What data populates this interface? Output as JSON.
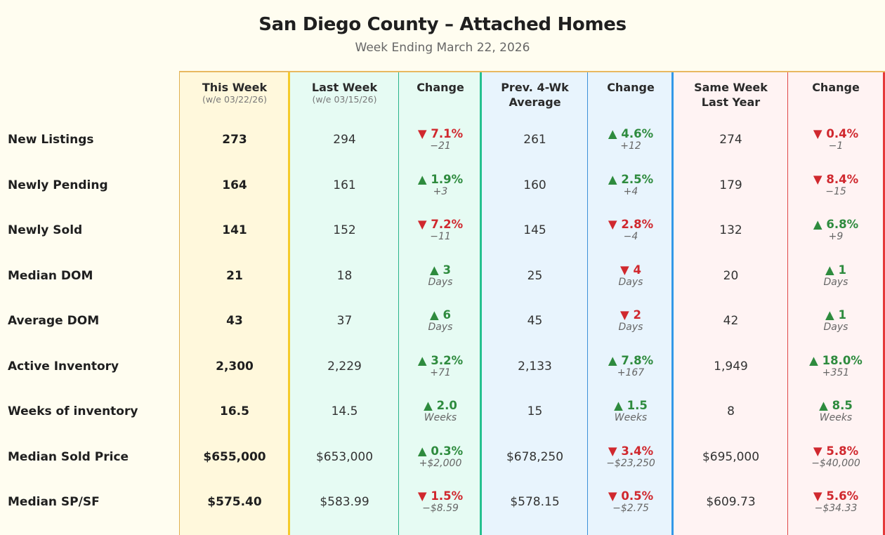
{
  "title": "San Diego County – Attached Homes",
  "subtitle": "Week Ending March 22, 2026",
  "colors": {
    "up": "#2e8b3e",
    "down": "#d0282e",
    "this_week_bg": "#fff8dc",
    "last_week_bg": "#e6fbf3",
    "prev4_bg": "#e8f4fd",
    "last_year_bg": "#fff3f3"
  },
  "headers": {
    "this_week": "This Week",
    "this_week_sub": "(w/e 03/22/26)",
    "last_week": "Last Week",
    "last_week_sub": "(w/e 03/15/26)",
    "change1": "Change",
    "prev4_l1": "Prev. 4-Wk",
    "prev4_l2": "Average",
    "change2": "Change",
    "last_year_l1": "Same Week",
    "last_year_l2": "Last Year",
    "change3": "Change"
  },
  "rows": [
    {
      "label": "New Listings",
      "this_week": "273",
      "last_week": "294",
      "c1": {
        "dir": "down",
        "pct": "7.1%",
        "sub": "−21"
      },
      "prev4": "261",
      "c2": {
        "dir": "up",
        "pct": "4.6%",
        "sub": "+12"
      },
      "last_year": "274",
      "c3": {
        "dir": "down",
        "pct": "0.4%",
        "sub": "−1"
      }
    },
    {
      "label": "Newly Pending",
      "this_week": "164",
      "last_week": "161",
      "c1": {
        "dir": "up",
        "pct": "1.9%",
        "sub": "+3"
      },
      "prev4": "160",
      "c2": {
        "dir": "up",
        "pct": "2.5%",
        "sub": "+4"
      },
      "last_year": "179",
      "c3": {
        "dir": "down",
        "pct": "8.4%",
        "sub": "−15"
      }
    },
    {
      "label": "Newly Sold",
      "this_week": "141",
      "last_week": "152",
      "c1": {
        "dir": "down",
        "pct": "7.2%",
        "sub": "−11"
      },
      "prev4": "145",
      "c2": {
        "dir": "down",
        "pct": "2.8%",
        "sub": "−4"
      },
      "last_year": "132",
      "c3": {
        "dir": "up",
        "pct": "6.8%",
        "sub": "+9"
      }
    },
    {
      "label": "Median DOM",
      "this_week": "21",
      "last_week": "18",
      "c1": {
        "dir": "up",
        "pct": "3",
        "sub": "Days"
      },
      "prev4": "25",
      "c2": {
        "dir": "down",
        "pct": "4",
        "sub": "Days"
      },
      "last_year": "20",
      "c3": {
        "dir": "up",
        "pct": "1",
        "sub": "Days"
      }
    },
    {
      "label": "Average DOM",
      "this_week": "43",
      "last_week": "37",
      "c1": {
        "dir": "up",
        "pct": "6",
        "sub": "Days"
      },
      "prev4": "45",
      "c2": {
        "dir": "down",
        "pct": "2",
        "sub": "Days"
      },
      "last_year": "42",
      "c3": {
        "dir": "up",
        "pct": "1",
        "sub": "Days"
      }
    },
    {
      "label": "Active Inventory",
      "this_week": "2,300",
      "last_week": "2,229",
      "c1": {
        "dir": "up",
        "pct": "3.2%",
        "sub": "+71"
      },
      "prev4": "2,133",
      "c2": {
        "dir": "up",
        "pct": "7.8%",
        "sub": "+167"
      },
      "last_year": "1,949",
      "c3": {
        "dir": "up",
        "pct": "18.0%",
        "sub": "+351"
      }
    },
    {
      "label": "Weeks of inventory",
      "this_week": "16.5",
      "last_week": "14.5",
      "c1": {
        "dir": "up",
        "pct": "2.0",
        "sub": "Weeks"
      },
      "prev4": "15",
      "c2": {
        "dir": "up",
        "pct": "1.5",
        "sub": "Weeks"
      },
      "last_year": "8",
      "c3": {
        "dir": "up",
        "pct": "8.5",
        "sub": "Weeks"
      }
    },
    {
      "label": "Median Sold Price",
      "this_week": "$655,000",
      "last_week": "$653,000",
      "c1": {
        "dir": "up",
        "pct": "0.3%",
        "sub": "+$2,000"
      },
      "prev4": "$678,250",
      "c2": {
        "dir": "down",
        "pct": "3.4%",
        "sub": "−$23,250"
      },
      "last_year": "$695,000",
      "c3": {
        "dir": "down",
        "pct": "5.8%",
        "sub": "−$40,000"
      }
    },
    {
      "label": "Median SP/SF",
      "this_week": "$575.40",
      "last_week": "$583.99",
      "c1": {
        "dir": "down",
        "pct": "1.5%",
        "sub": "−$8.59"
      },
      "prev4": "$578.15",
      "c2": {
        "dir": "down",
        "pct": "0.5%",
        "sub": "−$2.75"
      },
      "last_year": "$609.73",
      "c3": {
        "dir": "down",
        "pct": "5.6%",
        "sub": "−$34.33"
      }
    }
  ]
}
